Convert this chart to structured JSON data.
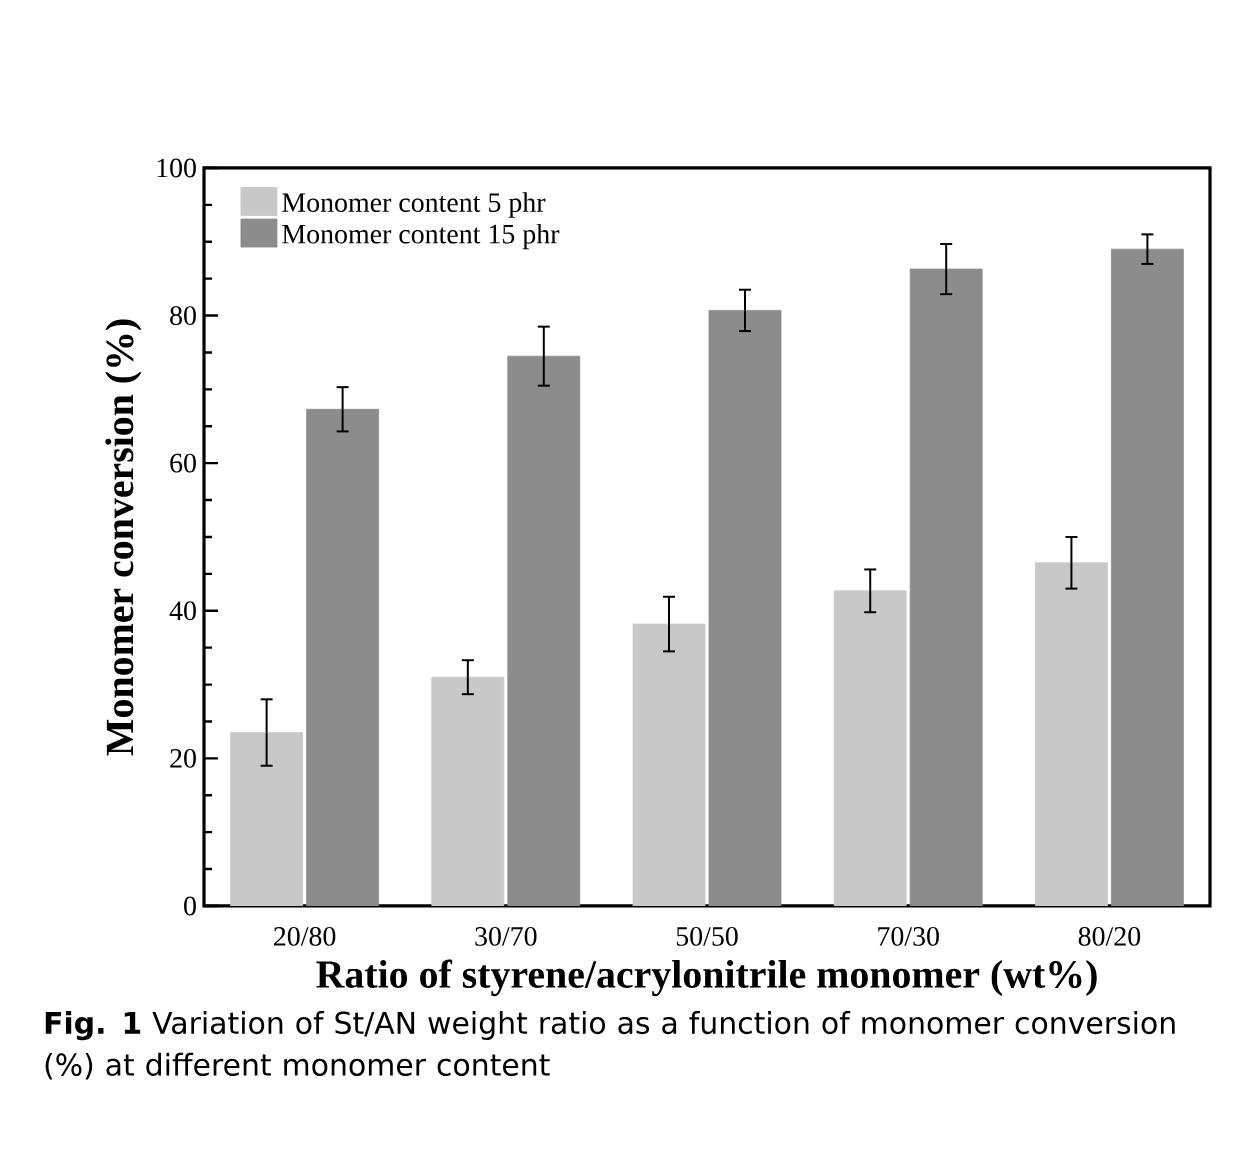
{
  "chart_data": {
    "type": "bar",
    "xlabel": "Ratio of styrene/acrylonitrile monomer (wt%)",
    "ylabel": "Monomer conversion (%)",
    "categories": [
      "20/80",
      "30/70",
      "50/50",
      "70/30",
      "80/20"
    ],
    "series": [
      {
        "name": "Monomer content 5 phr",
        "color": "#c8c8c8",
        "values": [
          23.5,
          31,
          38.2,
          42.7,
          46.5
        ],
        "errors": [
          4.5,
          2.3,
          3.7,
          2.9,
          3.5
        ]
      },
      {
        "name": "Monomer content 15 phr",
        "color": "#8c8c8c",
        "values": [
          67.3,
          74.5,
          80.7,
          86.3,
          89
        ],
        "errors": [
          3,
          4,
          2.8,
          3.4,
          2
        ]
      }
    ],
    "ylim": [
      0,
      100
    ],
    "yticks": [
      0,
      20,
      40,
      60,
      80,
      100
    ],
    "legend": "top left",
    "grid": false,
    "annotations": [
      "**Fig. 1** Variation of St/AN weight ratio as a function of monomer conversion (%) at different monomer content"
    ]
  }
}
